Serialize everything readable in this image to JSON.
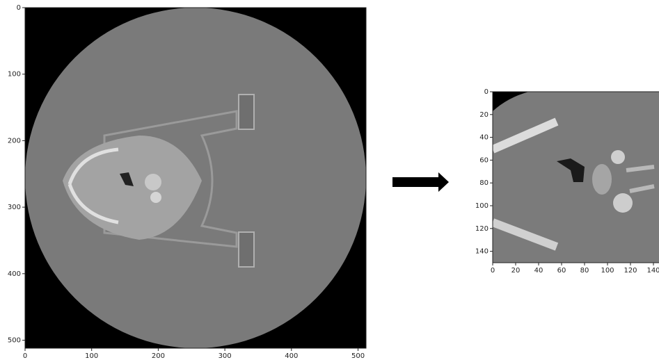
{
  "chart_data": [
    {
      "type": "image",
      "xlim": [
        0,
        512
      ],
      "ylim": [
        0,
        512
      ],
      "xticks": [
        0,
        100,
        200,
        300,
        400,
        500
      ],
      "yticks": [
        0,
        100,
        200,
        300,
        400,
        500
      ]
    },
    {
      "type": "image",
      "xlim": [
        0,
        150
      ],
      "ylim": [
        0,
        150
      ],
      "xticks": [
        0,
        20,
        40,
        60,
        80,
        100,
        120,
        140
      ],
      "yticks": [
        0,
        20,
        40,
        60,
        80,
        100,
        120,
        140
      ]
    }
  ]
}
